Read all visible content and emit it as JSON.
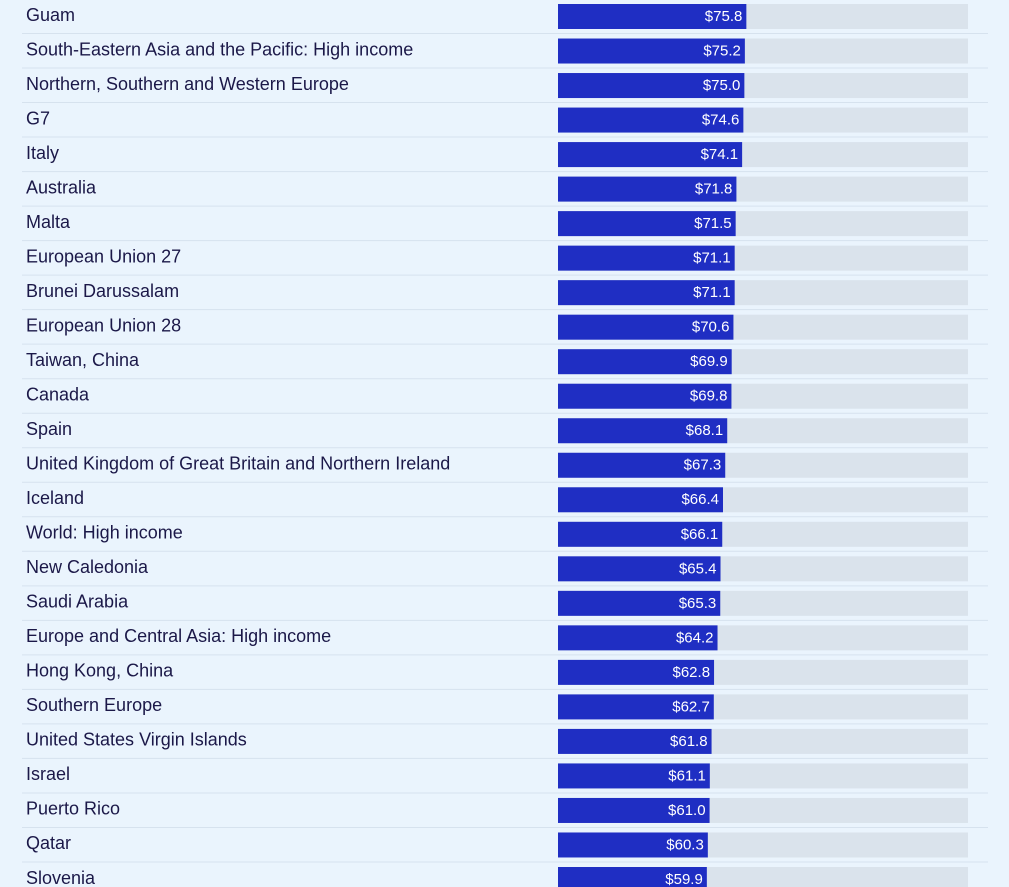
{
  "chart_data": {
    "type": "bar",
    "orientation": "horizontal",
    "categories": [
      "Guam",
      "South-Eastern Asia and the Pacific: High income",
      "Northern, Southern and Western Europe",
      "G7",
      "Italy",
      "Australia",
      "Malta",
      "European Union 27",
      "Brunei Darussalam",
      "European Union 28",
      "Taiwan, China",
      "Canada",
      "Spain",
      "United Kingdom of Great Britain and Northern Ireland",
      "Iceland",
      "World: High income",
      "New Caledonia",
      "Saudi Arabia",
      "Europe and Central Asia: High income",
      "Hong Kong, China",
      "Southern Europe",
      "United States Virgin Islands",
      "Israel",
      "Puerto Rico",
      "Qatar",
      "Slovenia"
    ],
    "values": [
      75.8,
      75.2,
      75.0,
      74.6,
      74.1,
      71.8,
      71.5,
      71.1,
      71.1,
      70.6,
      69.9,
      69.8,
      68.1,
      67.3,
      66.4,
      66.1,
      65.4,
      65.3,
      64.2,
      62.8,
      62.7,
      61.8,
      61.1,
      61.0,
      60.3,
      59.9
    ],
    "value_labels": [
      "$75.8",
      "$75.2",
      "$75.0",
      "$74.6",
      "$74.1",
      "$71.8",
      "$71.5",
      "$71.1",
      "$71.1",
      "$70.6",
      "$69.9",
      "$69.8",
      "$68.1",
      "$67.3",
      "$66.4",
      "$66.1",
      "$65.4",
      "$65.3",
      "$64.2",
      "$62.8",
      "$62.7",
      "$61.8",
      "$61.1",
      "$61.0",
      "$60.3",
      "$59.9"
    ],
    "color": "#1f2ec3",
    "track_color": "#dae3ec",
    "xlim": [
      0,
      165
    ]
  }
}
